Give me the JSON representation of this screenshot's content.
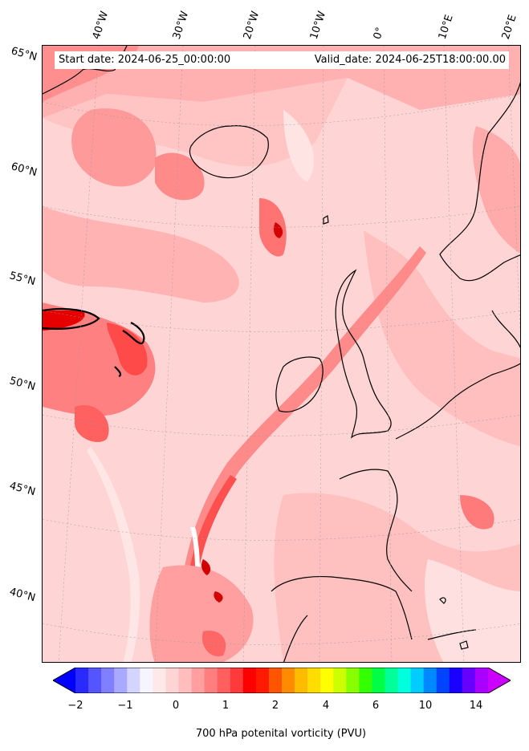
{
  "info": {
    "start_date": "Start date: 2024-06-25_00:00:00",
    "valid_date": "Valid_date: 2024-06-25T18:00:00.00"
  },
  "lat_labels": [
    "65°N",
    "60°N",
    "55°N",
    "50°N",
    "45°N",
    "40°N"
  ],
  "lon_labels": [
    "40°W",
    "30°W",
    "20°W",
    "10°W",
    "0°",
    "10°E",
    "20°E"
  ],
  "colorbar": {
    "label": "700 hPa potenital vorticity (PVU)",
    "ticks": [
      "−2",
      "−1",
      "0",
      "1",
      "2",
      "4",
      "6",
      "10",
      "14"
    ],
    "colors": [
      "#0000ff",
      "#2a2aff",
      "#5555ff",
      "#7f7fff",
      "#a9a9ff",
      "#d4d4ff",
      "#f5f5ff",
      "#ffe8e8",
      "#ffd4d4",
      "#ffbdbd",
      "#ff9f9f",
      "#ff7f7f",
      "#ff5f5f",
      "#ff3a3a",
      "#ff0000",
      "#ff1a00",
      "#ff5500",
      "#ff8c00",
      "#ffbb00",
      "#ffdd00",
      "#ffff00",
      "#ccff00",
      "#88ff00",
      "#33ff00",
      "#00ff44",
      "#00ff99",
      "#00ffdd",
      "#00ccff",
      "#0088ff",
      "#0044ff",
      "#1a00ff",
      "#6600ff",
      "#aa00ff",
      "#cc00ff"
    ]
  },
  "map": {
    "background_color": "#ffd6d6",
    "coastline_color": "#000000"
  }
}
